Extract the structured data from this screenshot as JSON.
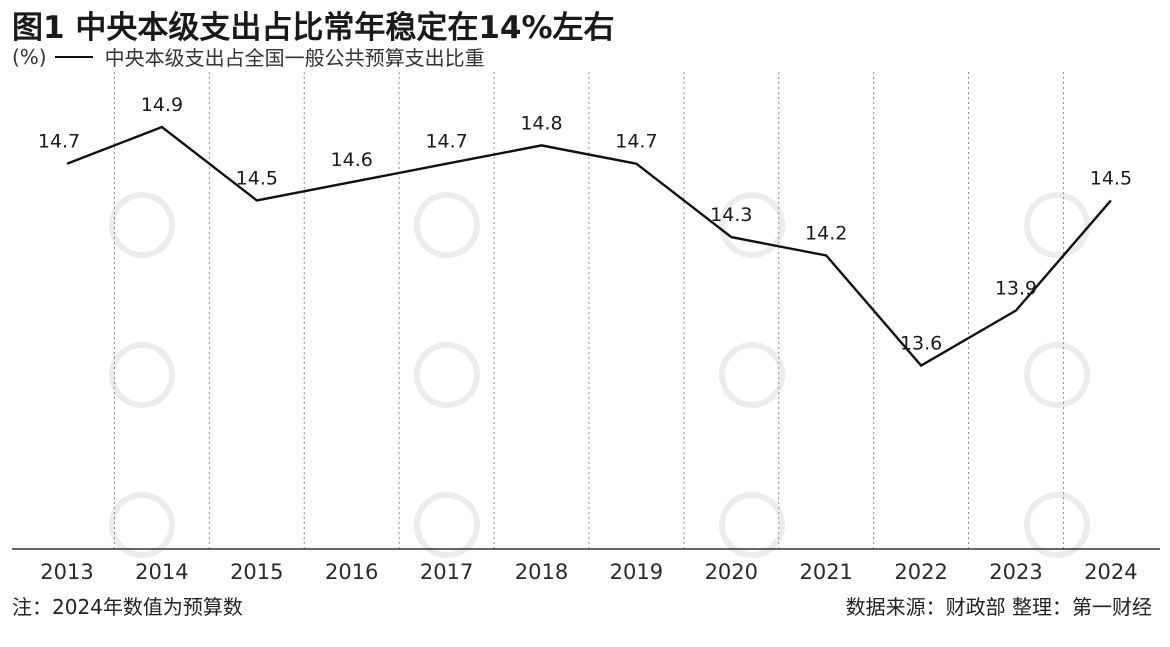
{
  "title": "图1 中央本级支出占比常年稳定在14%左右",
  "legend": {
    "unit": "(%)",
    "series_label": "中央本级支出占全国一般公共预算支出比重"
  },
  "footnote": "注：2024年数值为预算数",
  "source": "数据来源：财政部  整理：第一财经",
  "colors": {
    "line": "#111111",
    "grid": "#8a8a8a",
    "axis": "#333333",
    "watermark": "#ececec"
  },
  "chart_data": {
    "type": "line",
    "x": [
      "2013",
      "2014",
      "2015",
      "2016",
      "2017",
      "2018",
      "2019",
      "2020",
      "2021",
      "2022",
      "2023",
      "2024"
    ],
    "series": [
      {
        "name": "中央本级支出占全国一般公共预算支出比重",
        "values": [
          14.7,
          14.9,
          14.5,
          14.6,
          14.7,
          14.8,
          14.7,
          14.3,
          14.2,
          13.6,
          13.9,
          14.5
        ]
      }
    ],
    "data_labels": [
      "14.7",
      "14.9",
      "14.5",
      "14.6",
      "14.7",
      "14.8",
      "14.7",
      "14.3",
      "14.2",
      "13.6",
      "13.9",
      "14.5"
    ],
    "ylim": [
      12.6,
      15.2
    ],
    "grid": "vertical-dotted",
    "ylabel": "(%)"
  }
}
